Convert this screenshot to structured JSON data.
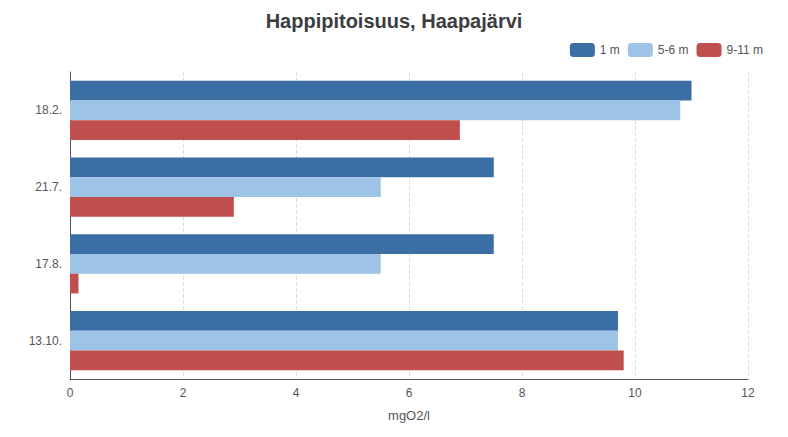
{
  "chart_data": {
    "type": "bar",
    "orientation": "horizontal",
    "title": "Happipitoisuus, Haapajärvi",
    "categories": [
      "18.2.",
      "21.7.",
      "17.8.",
      "13.10."
    ],
    "series": [
      {
        "name": "1 m",
        "color": "#3A6EA5",
        "values": [
          11.0,
          7.5,
          7.5,
          9.7
        ]
      },
      {
        "name": "5-6 m",
        "color": "#9DC3E6",
        "values": [
          10.8,
          5.5,
          5.5,
          9.7
        ]
      },
      {
        "name": "9-11 m",
        "color": "#C0504D",
        "values": [
          6.9,
          2.9,
          0.15,
          9.8
        ]
      }
    ],
    "xlabel": "mgO2/l",
    "xlim": [
      0,
      12
    ],
    "xticks": [
      0,
      2,
      4,
      6,
      8,
      10,
      12
    ],
    "grid": true,
    "legend": "upper right"
  }
}
